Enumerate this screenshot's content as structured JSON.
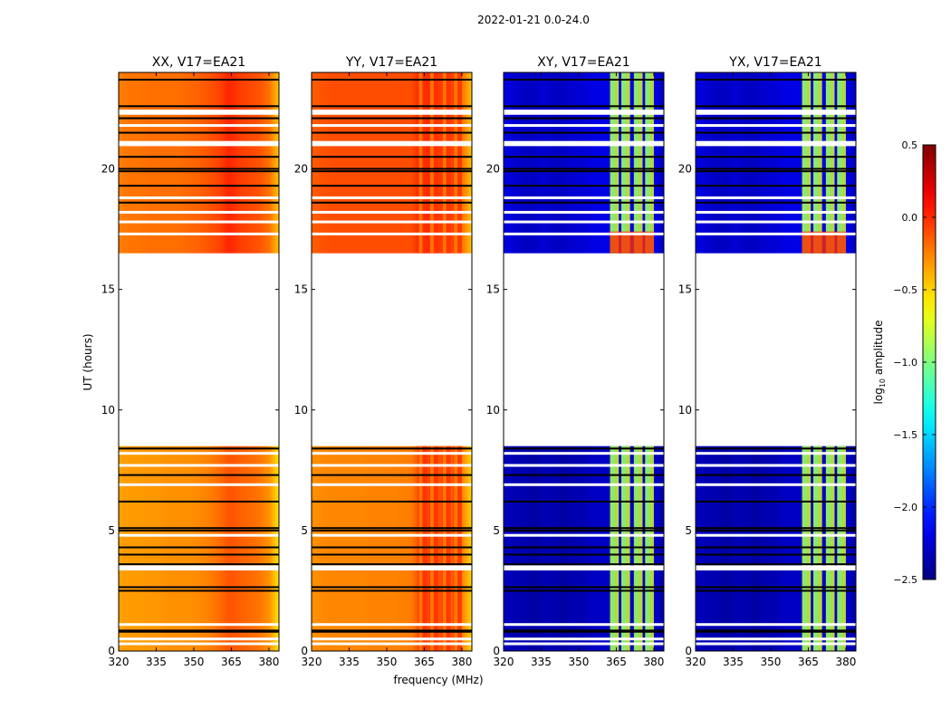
{
  "chart_data": {
    "type": "heatmap",
    "suptitle": "2022-01-21 0.0-24.0",
    "xlabel": "frequency (MHz)",
    "ylabel": "UT (hours)",
    "xlim": [
      320,
      384
    ],
    "ylim": [
      0,
      24
    ],
    "xticks": [
      320,
      335,
      350,
      365,
      380
    ],
    "xtick_labels": [
      "320",
      "335",
      "350",
      "365",
      "380"
    ],
    "yticks": [
      0,
      5,
      10,
      15,
      20
    ],
    "ytick_labels": [
      "0",
      "5",
      "10",
      "15",
      "20"
    ],
    "data_blocks_hours": [
      [
        0,
        8.5
      ],
      [
        16.5,
        24
      ]
    ],
    "flagged_rows_black_hours": [
      0.8,
      0.85,
      2.5,
      2.65,
      3.6,
      4.0,
      4.3,
      5.0,
      5.1,
      6.2,
      7.3,
      8.4,
      18.6,
      19.3,
      19.9,
      20.0,
      20.5,
      21.5,
      22.1,
      22.6,
      23.7
    ],
    "flagged_rows_white_hours": [
      0.3,
      0.5,
      1.1,
      3.4,
      3.5,
      4.8,
      6.9,
      7.7,
      8.2,
      17.3,
      17.8,
      18.2,
      18.8,
      21.0,
      21.1,
      21.8,
      22.3,
      22.4
    ],
    "spectrum_freqs_mhz": [
      320,
      324,
      328,
      332,
      336,
      340,
      344,
      348,
      352,
      356,
      360,
      364,
      368,
      372,
      376,
      380,
      384
    ],
    "rfi_columns_mhz": [
      [
        362.5,
        366
      ],
      [
        367,
        370.5
      ],
      [
        372,
        375.5
      ],
      [
        376.5,
        380
      ]
    ],
    "panels": [
      {
        "title": "XX, V17=EA21",
        "early_log_amp": [
          -0.35,
          -0.33,
          -0.33,
          -0.32,
          -0.32,
          -0.3,
          -0.3,
          -0.3,
          -0.28,
          -0.25,
          -0.2,
          -0.12,
          -0.15,
          -0.18,
          -0.22,
          -0.3,
          -0.55
        ],
        "late_log_amp": [
          -0.25,
          -0.22,
          -0.22,
          -0.2,
          -0.2,
          -0.2,
          -0.2,
          -0.18,
          -0.16,
          -0.12,
          -0.08,
          0.02,
          -0.05,
          -0.08,
          -0.12,
          -0.2,
          -0.45
        ],
        "rfi_log_amp": null
      },
      {
        "title": "YY, V17=EA21",
        "early_log_amp": [
          -0.3,
          -0.28,
          -0.27,
          -0.27,
          -0.27,
          -0.27,
          -0.26,
          -0.26,
          -0.26,
          -0.25,
          -0.24,
          -0.05,
          -0.1,
          -0.12,
          -0.15,
          -0.25,
          -0.5
        ],
        "late_log_amp": [
          -0.15,
          -0.12,
          -0.1,
          -0.1,
          -0.1,
          -0.1,
          -0.1,
          -0.1,
          -0.1,
          -0.1,
          -0.1,
          0.05,
          -0.02,
          -0.05,
          -0.08,
          -0.2,
          -0.45
        ],
        "rfi_log_amp": -0.02
      },
      {
        "title": "XY, V17=EA21",
        "early_log_amp": [
          -2.3,
          -2.35,
          -2.35,
          -2.4,
          -2.35,
          -2.35,
          -2.4,
          -2.35,
          -2.35,
          -2.3,
          -2.3,
          -2.3,
          -2.3,
          -2.3,
          -2.3,
          -2.3,
          -2.35
        ],
        "late_log_amp": [
          -2.2,
          -2.25,
          -2.3,
          -2.3,
          -2.25,
          -2.3,
          -2.3,
          -2.25,
          -2.25,
          -2.2,
          -2.2,
          -2.2,
          -2.2,
          -2.2,
          -2.2,
          -2.2,
          -2.3
        ],
        "rfi_log_amp": -0.75
      },
      {
        "title": "YX, V17=EA21",
        "early_log_amp": [
          -2.3,
          -2.35,
          -2.35,
          -2.4,
          -2.35,
          -2.35,
          -2.4,
          -2.35,
          -2.35,
          -2.3,
          -2.3,
          -2.3,
          -2.3,
          -2.3,
          -2.3,
          -2.3,
          -2.35
        ],
        "late_log_amp": [
          -2.2,
          -2.25,
          -2.3,
          -2.3,
          -2.25,
          -2.3,
          -2.3,
          -2.25,
          -2.25,
          -2.2,
          -2.2,
          -2.2,
          -2.2,
          -2.2,
          -2.2,
          -2.2,
          -2.3
        ],
        "rfi_log_amp": -0.75
      }
    ],
    "colorbar": {
      "label_prefix": "log",
      "label_sub": "10",
      "label_suffix": " amplitude",
      "range": [
        -2.5,
        0.5
      ],
      "ticks": [
        0.5,
        0.0,
        -0.5,
        -1.0,
        -1.5,
        -2.0,
        -2.5
      ],
      "tick_labels": [
        "0.5",
        "0.0",
        "−0.5",
        "−1.0",
        "−1.5",
        "−2.0",
        "−2.5"
      ],
      "colormap": "jet"
    }
  }
}
